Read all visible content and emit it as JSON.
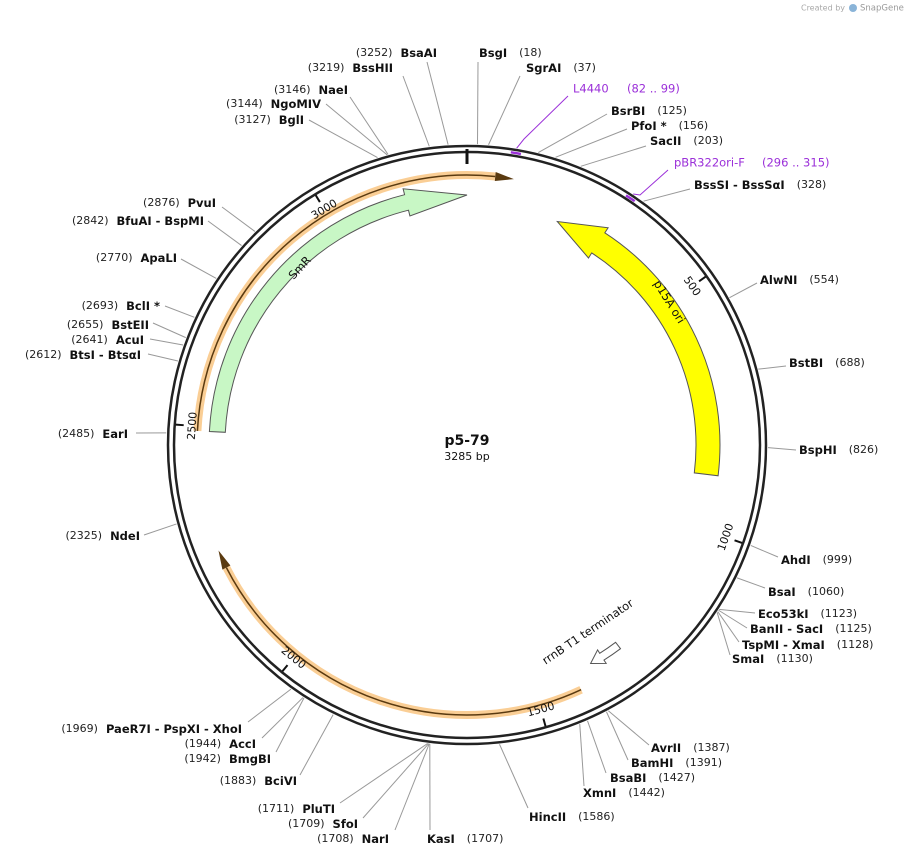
{
  "watermark": {
    "prefix": "Created by",
    "brand": "SnapGene"
  },
  "map": {
    "name": "p5-79",
    "length": "3285 bp",
    "ticks": [
      "500",
      "1000",
      "1500",
      "2000",
      "2500",
      "3000"
    ]
  },
  "features": [
    {
      "label": "SmR"
    },
    {
      "label": "p15A ori"
    },
    {
      "label": "rrnB T1 terminator"
    }
  ],
  "primers": [
    {
      "name": "L4440",
      "range": "(82 .. 99)"
    },
    {
      "name": "pBR322ori-F",
      "range": "(296 .. 315)"
    }
  ],
  "sites": [
    {
      "name": "BsaAI",
      "position": "(3252)"
    },
    {
      "name": "BssHII",
      "position": "(3219)"
    },
    {
      "name": "NaeI",
      "position": "(3146)"
    },
    {
      "name": "NgoMIV",
      "position": "(3144)"
    },
    {
      "name": "BglI",
      "position": "(3127)"
    },
    {
      "name": "BsgI",
      "position": "(18)"
    },
    {
      "name": "SgrAI",
      "position": "(37)"
    },
    {
      "name": "BsrBI",
      "position": "(125)"
    },
    {
      "name": "PfoI *",
      "position": "(156)"
    },
    {
      "name": "SacII",
      "position": "(203)"
    },
    {
      "name": "BssSI - BssSαI",
      "position": "(328)"
    },
    {
      "name": "AlwNI",
      "position": "(554)"
    },
    {
      "name": "BstBI",
      "position": "(688)"
    },
    {
      "name": "BspHI",
      "position": "(826)"
    },
    {
      "name": "AhdI",
      "position": "(999)"
    },
    {
      "name": "BsaI",
      "position": "(1060)"
    },
    {
      "name": "Eco53kI",
      "position": "(1123)"
    },
    {
      "name": "BanII - SacI",
      "position": "(1125)"
    },
    {
      "name": "TspMI - XmaI",
      "position": "(1128)"
    },
    {
      "name": "SmaI",
      "position": "(1130)"
    },
    {
      "name": "AvrII",
      "position": "(1387)"
    },
    {
      "name": "BamHI",
      "position": "(1391)"
    },
    {
      "name": "BsaBI",
      "position": "(1427)"
    },
    {
      "name": "XmnI",
      "position": "(1442)"
    },
    {
      "name": "HincII",
      "position": "(1586)"
    },
    {
      "name": "KasI",
      "position": "(1707)"
    },
    {
      "name": "NarI",
      "position": "(1708)"
    },
    {
      "name": "SfoI",
      "position": "(1709)"
    },
    {
      "name": "PluTI",
      "position": "(1711)"
    },
    {
      "name": "BciVI",
      "position": "(1883)"
    },
    {
      "name": "BmgBI",
      "position": "(1942)"
    },
    {
      "name": "AccI",
      "position": "(1944)"
    },
    {
      "name": "PaeR7I - PspXI - XhoI",
      "position": "(1969)"
    },
    {
      "name": "NdeI",
      "position": "(2325)"
    },
    {
      "name": "EarI",
      "position": "(2485)"
    },
    {
      "name": "BtsI - BtsαI",
      "position": "(2612)"
    },
    {
      "name": "AcuI",
      "position": "(2641)"
    },
    {
      "name": "BstEII",
      "position": "(2655)"
    },
    {
      "name": "BclI *",
      "position": "(2693)"
    },
    {
      "name": "ApaLI",
      "position": "(2770)"
    },
    {
      "name": "BfuAI - BspMI",
      "position": "(2842)"
    },
    {
      "name": "PvuI",
      "position": "(2876)"
    }
  ]
}
